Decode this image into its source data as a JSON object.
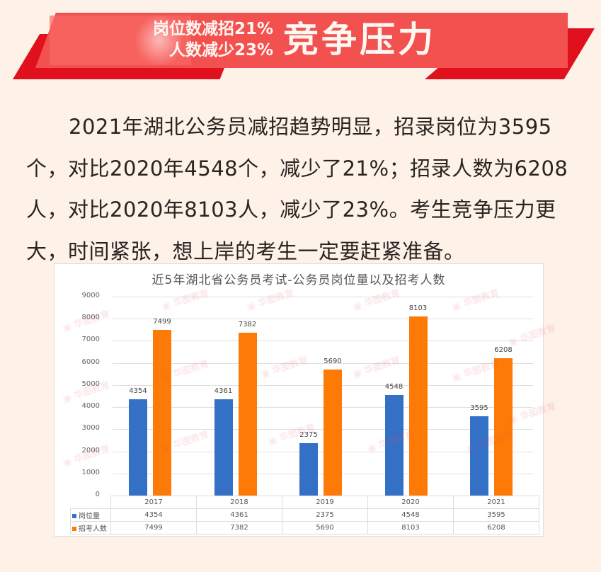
{
  "banner": {
    "line1": "岗位数减招21%",
    "line2": "人数减少23%",
    "headline": "竞争压力",
    "colors": {
      "band": "#f2514f",
      "shadow": "#e0101c",
      "text": "#fff7f2"
    }
  },
  "paragraph": {
    "text": "2021年湖北公务员减招趋势明显，招录岗位为3595个，对比2020年4548个，减少了21%；招录人数为6208人，对比2020年8103人，减少了23%。考生竞争压力更大，时间紧张，想上岸的考生一定要赶紧准备。"
  },
  "watermark": {
    "text": "华图教育"
  },
  "chart_data": {
    "type": "bar",
    "title": "近5年湖北省公务员考试-公务员岗位量以及招考人数",
    "xlabel": "",
    "ylabel": "",
    "categories": [
      "2017",
      "2018",
      "2019",
      "2020",
      "2021"
    ],
    "series": [
      {
        "name": "岗位量",
        "color": "#3470c6",
        "values": [
          4354,
          4361,
          2375,
          4548,
          3595
        ]
      },
      {
        "name": "招考人数",
        "color": "#fd7a07",
        "values": [
          7499,
          7382,
          5690,
          8103,
          6208
        ]
      }
    ],
    "ylim": [
      0,
      9000
    ],
    "yticks": [
      "9000",
      "8000",
      "7000",
      "6000",
      "5000",
      "4000",
      "3000",
      "2000",
      "1000",
      "0"
    ],
    "grid": true,
    "data_labels": true,
    "legend_position": "data-table-bottom",
    "data_table": true
  }
}
